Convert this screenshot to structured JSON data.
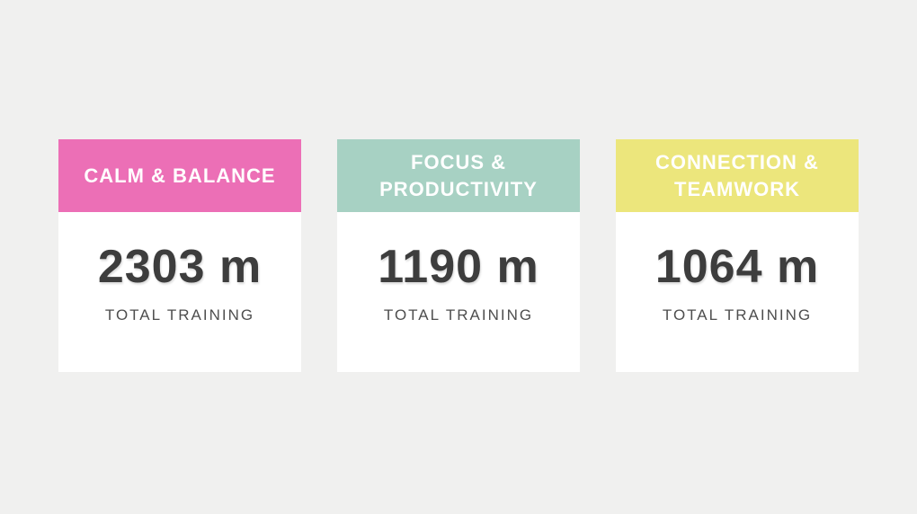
{
  "background_color": "#f0f0ef",
  "card_background": "#ffffff",
  "value_color": "#3d3d3d",
  "label_color": "#4e4e4e",
  "title_color": "#ffffff",
  "cards": [
    {
      "title": "CALM & BALANCE",
      "value": "2303 m",
      "label": "TOTAL TRAINING",
      "header_color": "#ec6fb6"
    },
    {
      "title": "FOCUS & PRODUCTIVITY",
      "value": "1190 m",
      "label": "TOTAL TRAINING",
      "header_color": "#a7d1c3"
    },
    {
      "title": "CONNECTION & TEAMWORK",
      "value": "1064 m",
      "label": "TOTAL TRAINING",
      "header_color": "#ece67c"
    }
  ],
  "chart_data": {
    "type": "table",
    "title": "",
    "categories": [
      "CALM & BALANCE",
      "FOCUS & PRODUCTIVITY",
      "CONNECTION & TEAMWORK"
    ],
    "values": [
      2303,
      1190,
      1064
    ],
    "unit": "m",
    "value_label": "TOTAL TRAINING",
    "category_colors": [
      "#ec6fb6",
      "#a7d1c3",
      "#ece67c"
    ]
  }
}
